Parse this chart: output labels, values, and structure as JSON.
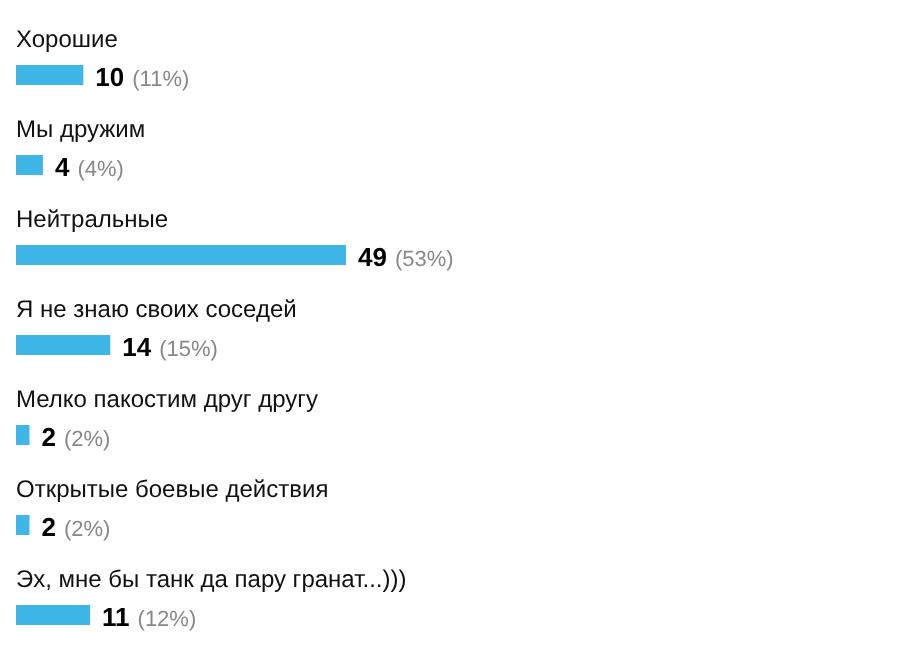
{
  "chart_data": {
    "type": "bar",
    "orientation": "horizontal",
    "categories": [
      "Хорошие",
      "Мы дружим",
      "Нейтральные",
      "Я не знаю своих соседей",
      "Мелко пакостим друг другу",
      "Открытые боевые действия",
      "Эх, мне бы танк да пару гранат...)))"
    ],
    "values": [
      10,
      4,
      49,
      14,
      2,
      2,
      11
    ],
    "value_labels": [
      "10 (11%)",
      "4 (4%)",
      "49 (53%)",
      "14 (15%)",
      "2 (2%)",
      "2 (2%)",
      "11 (12%)"
    ],
    "color": "#3fb6e8"
  }
}
